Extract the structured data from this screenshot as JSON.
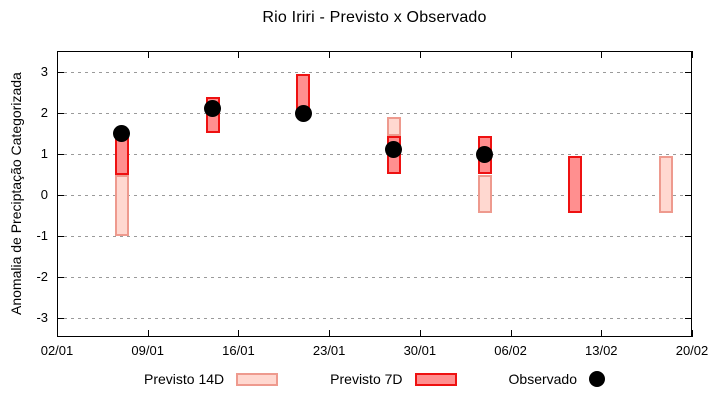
{
  "title": "Rio Iriri - Previsto x Observado",
  "chart_data": {
    "type": "bar",
    "title": "Rio Iriri - Previsto x Observado",
    "xlabel": "",
    "ylabel": "Anomalia de Preciptação Categorizada",
    "ylim": [
      -3.5,
      3.5
    ],
    "yticks": [
      3,
      2,
      1,
      0,
      -1,
      -2,
      -3
    ],
    "xtick_labels": [
      "02/01",
      "09/01",
      "16/01",
      "23/01",
      "30/01",
      "06/02",
      "13/02",
      "20/02"
    ],
    "xtick_interval_days": 7,
    "grid": "horizontal-dotted",
    "grid_color": "#9a9a9a",
    "legend_position": "bottom-center",
    "legend": [
      {
        "label": "Previsto 14D",
        "type": "box",
        "fill": "#ffd8d0",
        "border": "#ee9a8e"
      },
      {
        "label": "Previsto 7D",
        "type": "box",
        "fill": "#ff8f8f",
        "border": "#ee1111"
      },
      {
        "label": "Observado",
        "type": "dot",
        "fill": "#000000"
      }
    ],
    "series": [
      {
        "name": "Previsto 14D",
        "style": "range-bar",
        "fill": "#ffd8d0",
        "border": "#ee9a8e"
      },
      {
        "name": "Previsto 7D",
        "style": "range-bar",
        "fill": "#ff8f8f",
        "border": "#ee1111"
      },
      {
        "name": "Observado",
        "style": "point",
        "fill": "#000000"
      }
    ],
    "points": [
      {
        "date": "07/01",
        "day": 5,
        "previsto14d": [
          -1.0,
          0.5
        ],
        "previsto7d": [
          0.5,
          1.5
        ],
        "observado": 1.5
      },
      {
        "date": "14/01",
        "day": 12,
        "previsto14d": null,
        "previsto7d": [
          1.5,
          2.4
        ],
        "observado": 2.1
      },
      {
        "date": "21/01",
        "day": 19,
        "previsto14d": null,
        "previsto7d": [
          2.0,
          2.95
        ],
        "observado": 2.0
      },
      {
        "date": "28/01",
        "day": 26,
        "previsto14d": [
          1.45,
          1.9
        ],
        "previsto7d": [
          0.5,
          1.45
        ],
        "observado": 1.1
      },
      {
        "date": "04/02",
        "day": 33,
        "previsto14d": [
          -0.45,
          0.5
        ],
        "previsto7d": [
          0.5,
          1.45
        ],
        "observado": 1.0
      },
      {
        "date": "11/02",
        "day": 40,
        "previsto14d": null,
        "previsto7d": [
          -0.45,
          0.95
        ],
        "observado": null
      },
      {
        "date": "18/02",
        "day": 47,
        "previsto14d": [
          -0.45,
          0.95
        ],
        "previsto7d": null,
        "observado": null
      }
    ]
  }
}
